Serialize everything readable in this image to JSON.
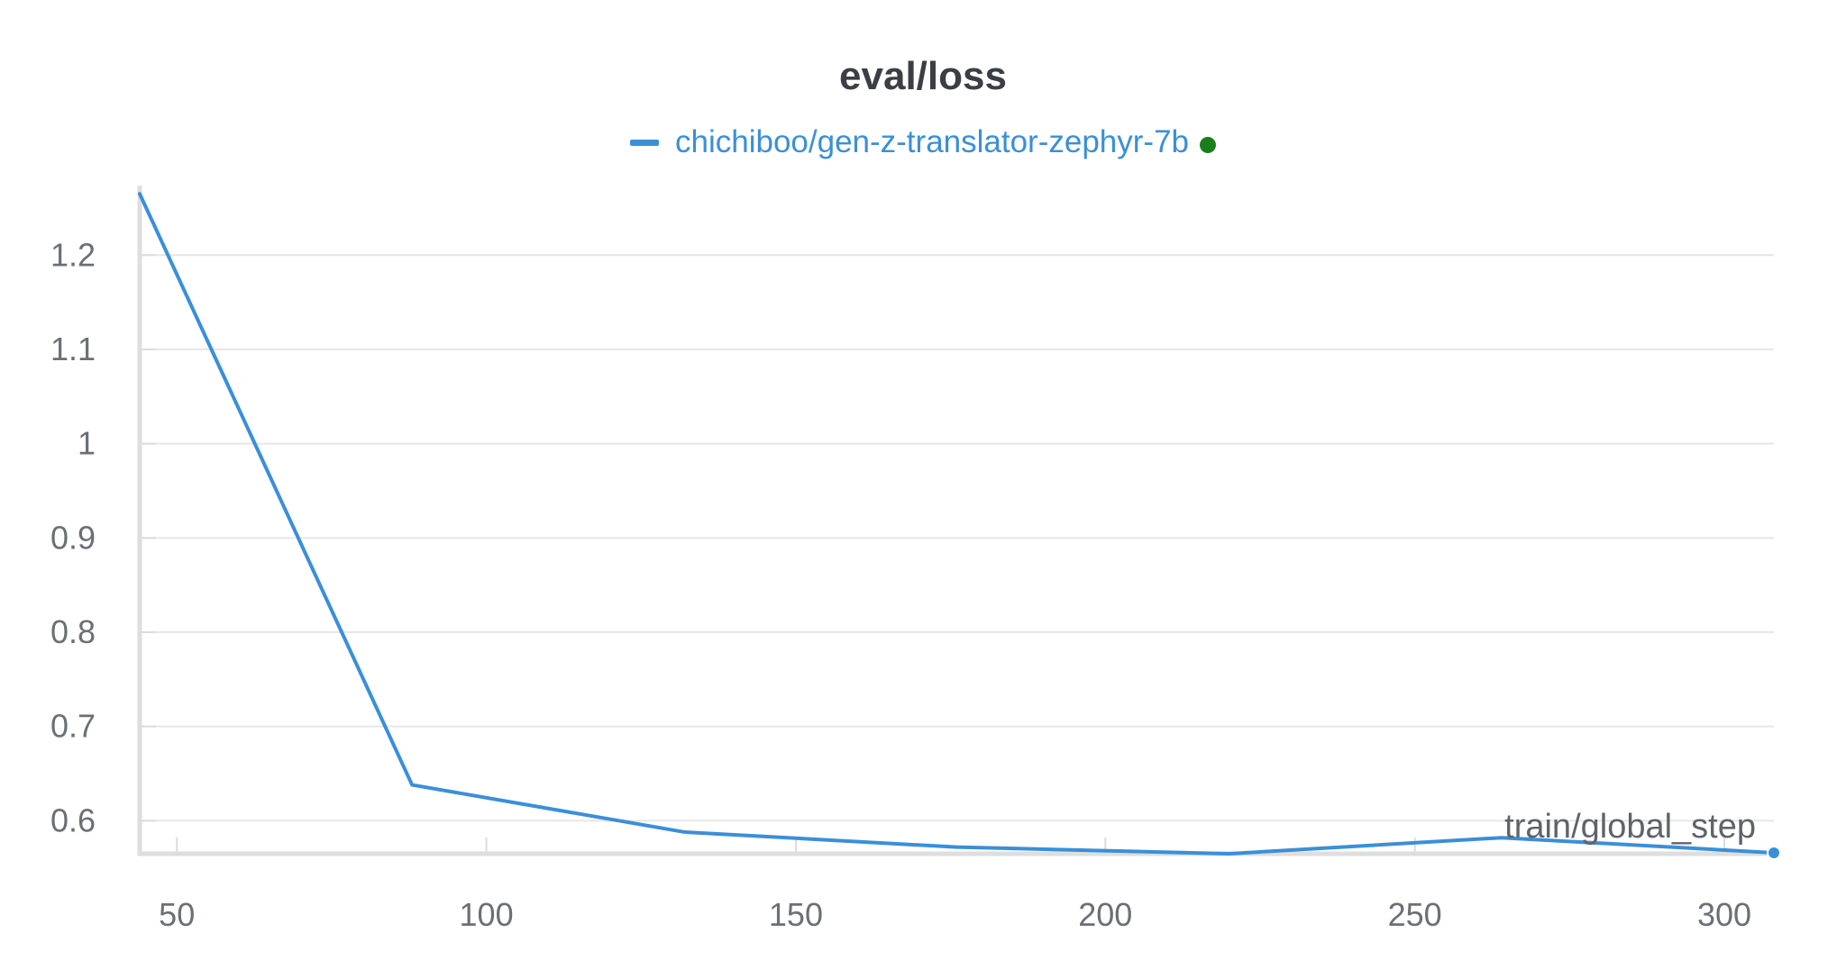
{
  "chart_data": {
    "type": "line",
    "title": "eval/loss",
    "xlabel": "train/global_step",
    "ylabel": "",
    "xlim": [
      44,
      308
    ],
    "ylim": [
      0.565,
      1.27
    ],
    "xticks": [
      50,
      100,
      150,
      200,
      250,
      300
    ],
    "yticks": [
      0.6,
      0.7,
      0.8,
      0.9,
      1,
      1.1,
      1.2
    ],
    "ytick_labels": [
      "0.6",
      "0.7",
      "0.8",
      "0.9",
      "1",
      "1.1",
      "1.2"
    ],
    "grid": true,
    "legend_position": "top-center",
    "series": [
      {
        "name": "chichiboo/gen-z-translator-zephyr-7b",
        "color": "#3a8fd9",
        "status_color": "#1a7f1a",
        "x": [
          44,
          88,
          132,
          176,
          220,
          264,
          308
        ],
        "y": [
          1.265,
          0.638,
          0.588,
          0.572,
          0.565,
          0.582,
          0.566
        ]
      }
    ]
  }
}
